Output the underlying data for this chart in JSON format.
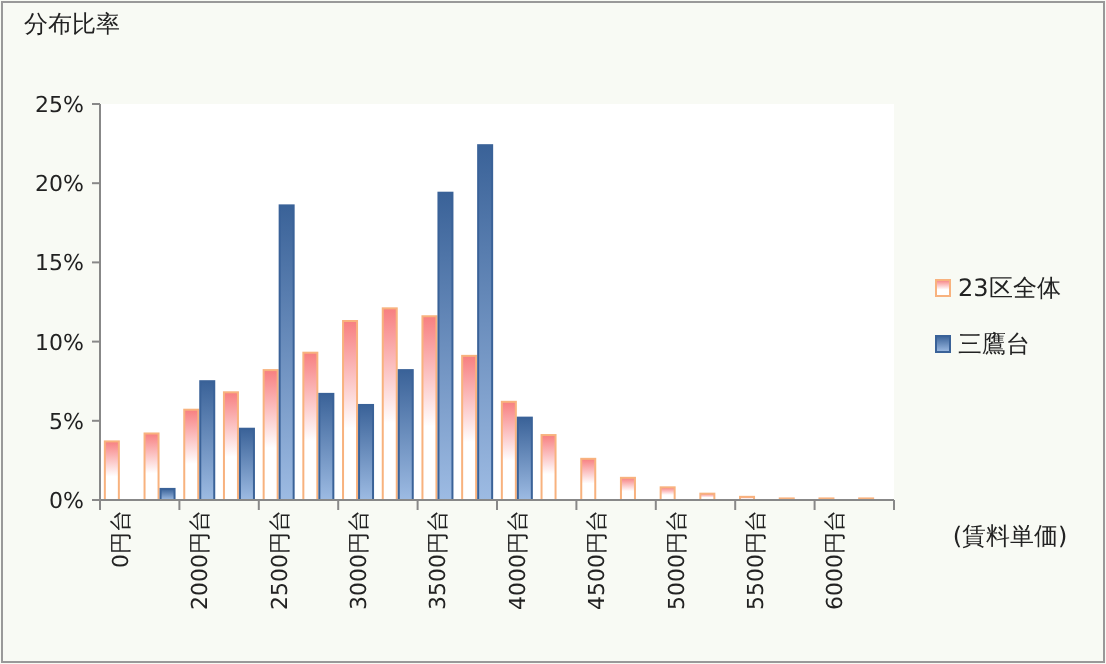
{
  "chart_data": {
    "type": "bar",
    "ylabel": "分布比率",
    "xlabel": "(賃料単価)",
    "categories": [
      "0円台",
      null,
      "2000円台",
      null,
      "2500円台",
      null,
      "3000円台",
      null,
      "3500円台",
      null,
      "4000円台",
      null,
      "4500円台",
      null,
      "5000円台",
      null,
      "5500円台",
      null,
      "6000円台",
      null
    ],
    "series": [
      {
        "name": "23区全体",
        "color": "#f8b27e",
        "values": [
          3.7,
          4.2,
          5.7,
          6.8,
          8.2,
          9.3,
          11.3,
          12.1,
          11.6,
          9.1,
          6.2,
          4.1,
          2.6,
          1.4,
          0.8,
          0.4,
          0.2,
          0.1,
          0.1,
          0.1
        ]
      },
      {
        "name": "三鷹台",
        "color": "#3a6298",
        "values": [
          0,
          0.7,
          7.5,
          4.5,
          18.6,
          6.7,
          6.0,
          8.2,
          19.4,
          22.4,
          5.2,
          0,
          0,
          0,
          0,
          0,
          0,
          0,
          0,
          0
        ]
      }
    ],
    "ylim": [
      0,
      25
    ],
    "yticks": [
      {
        "value": 0,
        "label": "0%"
      },
      {
        "value": 5,
        "label": "5%"
      },
      {
        "value": 10,
        "label": "10%"
      },
      {
        "value": 15,
        "label": "15%"
      },
      {
        "value": 20,
        "label": "20%"
      },
      {
        "value": 25,
        "label": "25%"
      }
    ],
    "legend": "right",
    "grid": false
  }
}
